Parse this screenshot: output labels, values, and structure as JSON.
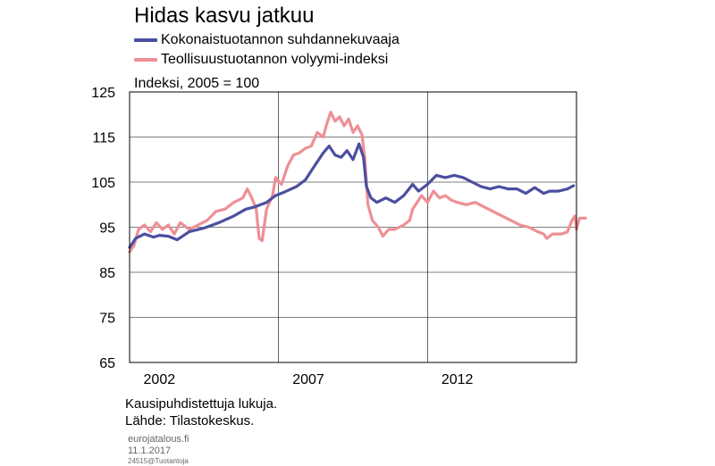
{
  "title": "Hidas kasvu jatkuu",
  "legend": [
    {
      "label": "Kokonaistuotannon suhdannekuvaaja",
      "color": "#4b4f9f"
    },
    {
      "label": "Teollisuustuotannon volyymi-indeksi",
      "color": "#ee8f95"
    }
  ],
  "unit_label": "Indeksi, 2005 = 100",
  "notes": [
    "Kausipuhdistettuja lukuja.",
    "Lähde: Tilastokeskus."
  ],
  "source_site": "eurojatalous.fi",
  "date": "11.1.2017",
  "code": "24515@Tuotantoja",
  "chart_data": {
    "type": "line",
    "title": "Hidas kasvu jatkuu",
    "ylabel": "Indeksi, 2005 = 100",
    "xlabel": "",
    "ylim": [
      65,
      125
    ],
    "yticks": [
      65,
      75,
      85,
      95,
      105,
      115,
      125
    ],
    "xlim": [
      2001.0,
      2016.0
    ],
    "xticks": [
      {
        "label": "2002",
        "value": 2002
      },
      {
        "label": "2007",
        "value": 2007
      },
      {
        "label": "2012",
        "value": 2012
      }
    ],
    "gridlines_x": [
      2006,
      2011
    ],
    "series": [
      {
        "name": "Kokonaistuotannon suhdannekuvaaja",
        "color": "#4b4f9f",
        "points": [
          [
            2001.0,
            90.5
          ],
          [
            2001.2,
            92.5
          ],
          [
            2001.5,
            93.5
          ],
          [
            2001.8,
            92.8
          ],
          [
            2002.0,
            93.2
          ],
          [
            2002.3,
            93.0
          ],
          [
            2002.6,
            92.2
          ],
          [
            2003.0,
            94.0
          ],
          [
            2003.5,
            94.8
          ],
          [
            2004.0,
            96.0
          ],
          [
            2004.5,
            97.5
          ],
          [
            2004.9,
            99.0
          ],
          [
            2005.2,
            99.5
          ],
          [
            2005.6,
            100.5
          ],
          [
            2005.9,
            102.0
          ],
          [
            2006.2,
            102.8
          ],
          [
            2006.6,
            104.0
          ],
          [
            2006.9,
            105.5
          ],
          [
            2007.1,
            107.5
          ],
          [
            2007.3,
            109.5
          ],
          [
            2007.5,
            111.5
          ],
          [
            2007.7,
            113.0
          ],
          [
            2007.9,
            111.0
          ],
          [
            2008.1,
            110.5
          ],
          [
            2008.3,
            112.0
          ],
          [
            2008.5,
            110.0
          ],
          [
            2008.7,
            113.5
          ],
          [
            2008.85,
            110.5
          ],
          [
            2008.95,
            104.0
          ],
          [
            2009.1,
            101.5
          ],
          [
            2009.3,
            100.5
          ],
          [
            2009.6,
            101.5
          ],
          [
            2009.9,
            100.5
          ],
          [
            2010.2,
            102.0
          ],
          [
            2010.5,
            104.5
          ],
          [
            2010.7,
            103.0
          ],
          [
            2011.0,
            104.5
          ],
          [
            2011.3,
            106.5
          ],
          [
            2011.6,
            106.0
          ],
          [
            2011.9,
            106.5
          ],
          [
            2012.2,
            106.0
          ],
          [
            2012.5,
            105.0
          ],
          [
            2012.8,
            104.0
          ],
          [
            2013.1,
            103.5
          ],
          [
            2013.4,
            104.0
          ],
          [
            2013.7,
            103.5
          ],
          [
            2014.0,
            103.5
          ],
          [
            2014.3,
            102.5
          ],
          [
            2014.6,
            103.8
          ],
          [
            2014.9,
            102.5
          ],
          [
            2015.1,
            103.0
          ],
          [
            2015.4,
            103.0
          ],
          [
            2015.7,
            103.5
          ],
          [
            2015.9,
            104.2
          ]
        ]
      },
      {
        "name": "Teollisuustuotannon volyymi-indeksi",
        "color": "#ee8f95",
        "points": [
          [
            2001.0,
            89.5
          ],
          [
            2001.15,
            91.0
          ],
          [
            2001.3,
            94.5
          ],
          [
            2001.5,
            95.5
          ],
          [
            2001.7,
            94.0
          ],
          [
            2001.9,
            96.0
          ],
          [
            2002.1,
            94.5
          ],
          [
            2002.3,
            95.5
          ],
          [
            2002.5,
            93.5
          ],
          [
            2002.7,
            96.0
          ],
          [
            2003.0,
            94.5
          ],
          [
            2003.3,
            95.5
          ],
          [
            2003.6,
            96.5
          ],
          [
            2003.9,
            98.5
          ],
          [
            2004.2,
            99.0
          ],
          [
            2004.5,
            100.5
          ],
          [
            2004.8,
            101.5
          ],
          [
            2004.95,
            103.5
          ],
          [
            2005.1,
            101.5
          ],
          [
            2005.25,
            99.0
          ],
          [
            2005.35,
            92.5
          ],
          [
            2005.45,
            92.0
          ],
          [
            2005.6,
            99.0
          ],
          [
            2005.8,
            102.0
          ],
          [
            2005.9,
            106.0
          ],
          [
            2006.1,
            104.5
          ],
          [
            2006.3,
            108.5
          ],
          [
            2006.5,
            111.0
          ],
          [
            2006.7,
            111.5
          ],
          [
            2006.9,
            112.5
          ],
          [
            2007.1,
            113.0
          ],
          [
            2007.3,
            116.0
          ],
          [
            2007.5,
            115.0
          ],
          [
            2007.6,
            117.5
          ],
          [
            2007.75,
            120.5
          ],
          [
            2007.9,
            118.5
          ],
          [
            2008.05,
            119.5
          ],
          [
            2008.2,
            117.5
          ],
          [
            2008.35,
            119.0
          ],
          [
            2008.5,
            116.0
          ],
          [
            2008.65,
            117.5
          ],
          [
            2008.8,
            115.5
          ],
          [
            2008.9,
            110.0
          ],
          [
            2009.0,
            100.0
          ],
          [
            2009.15,
            96.5
          ],
          [
            2009.35,
            95.0
          ],
          [
            2009.5,
            93.0
          ],
          [
            2009.7,
            94.5
          ],
          [
            2009.9,
            94.5
          ],
          [
            2010.2,
            95.5
          ],
          [
            2010.4,
            96.5
          ],
          [
            2010.5,
            99.0
          ],
          [
            2010.65,
            100.5
          ],
          [
            2010.8,
            102.0
          ],
          [
            2011.0,
            100.5
          ],
          [
            2011.2,
            103.0
          ],
          [
            2011.4,
            101.5
          ],
          [
            2011.6,
            102.0
          ],
          [
            2011.8,
            101.0
          ],
          [
            2012.0,
            100.5
          ],
          [
            2012.3,
            100.0
          ],
          [
            2012.6,
            100.5
          ],
          [
            2012.9,
            99.5
          ],
          [
            2013.2,
            98.5
          ],
          [
            2013.5,
            97.5
          ],
          [
            2013.8,
            96.5
          ],
          [
            2014.1,
            95.5
          ],
          [
            2014.4,
            95.0
          ],
          [
            2014.7,
            94.0
          ],
          [
            2014.9,
            93.5
          ],
          [
            2015.0,
            92.5
          ],
          [
            2015.2,
            93.5
          ],
          [
            2015.5,
            93.5
          ],
          [
            2015.7,
            94.0
          ],
          [
            2015.85,
            96.5
          ],
          [
            2015.95,
            97.5
          ],
          [
            2016.0,
            94.5
          ],
          [
            2016.1,
            97.0
          ],
          [
            2016.3,
            97.0
          ]
        ]
      }
    ]
  }
}
